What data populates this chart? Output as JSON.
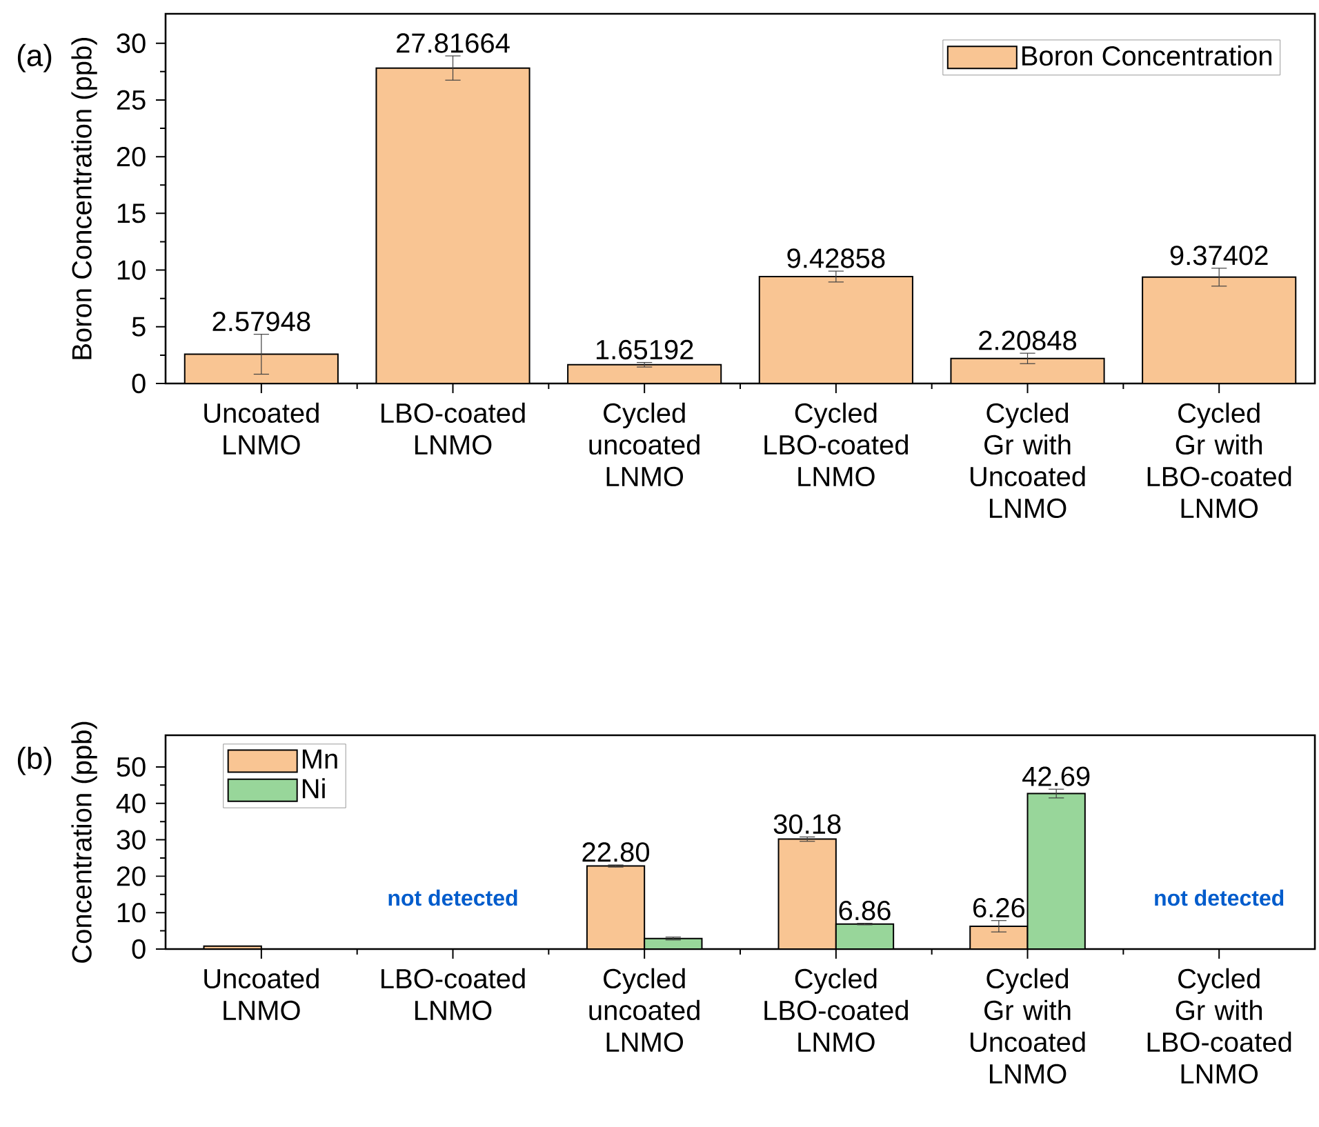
{
  "chart_data": [
    {
      "type": "bar",
      "ylabel": "Boron Concentration (ppb)",
      "categories": [
        "Uncoated LNMO",
        "LBO-coated LNMO",
        "Cycled uncoated LNMO",
        "Cycled LBO-coated LNMO",
        "Cycled Gr with Uncoated LNMO",
        "Cycled Gr with LBO-coated LNMO"
      ],
      "series": [
        {
          "name": "Boron Concentration",
          "color": "#f9c593",
          "values": [
            2.57948,
            27.81664,
            1.65192,
            9.42858,
            2.20848,
            9.37402
          ],
          "errors": [
            1.76,
            1.07,
            0.2,
            0.48,
            0.46,
            0.79
          ],
          "value_labels": [
            "2.57948",
            "27.81664",
            "1.65192",
            "9.42858",
            "2.20848",
            "9.37402"
          ]
        }
      ],
      "ylim": [
        0,
        32.6
      ],
      "yticks": [
        0,
        5,
        10,
        15,
        20,
        25,
        30
      ],
      "legend": "top right",
      "annotations": [
        "(a)"
      ]
    },
    {
      "type": "bar",
      "ylabel": "Concentration (ppb)",
      "categories": [
        "Uncoated LNMO",
        "LBO-coated LNMO",
        "Cycled uncoated LNMO",
        "Cycled LBO-coated LNMO",
        "Cycled Gr with Uncoated LNMO",
        "Cycled Gr with LBO-coated LNMO"
      ],
      "series": [
        {
          "name": "Mn",
          "color": "#f9c593",
          "values": [
            0.8,
            null,
            22.8,
            30.18,
            6.26,
            null
          ],
          "errors": [
            null,
            null,
            0.3,
            0.6,
            1.56,
            null
          ],
          "value_labels": [
            null,
            null,
            "22.80",
            "30.18",
            "6.26",
            null
          ]
        },
        {
          "name": "Ni",
          "color": "#98d69a",
          "values": [
            null,
            null,
            2.9,
            6.86,
            42.69,
            null
          ],
          "errors": [
            null,
            null,
            0.4,
            0.2,
            1.2,
            null
          ],
          "value_labels": [
            null,
            null,
            null,
            "6.86",
            "42.69",
            null
          ]
        }
      ],
      "ylim": [
        0,
        58.7
      ],
      "yticks": [
        0,
        10,
        20,
        30,
        40,
        50
      ],
      "legend": "top left",
      "annotations": [
        "(b)",
        "not detected",
        "not detected"
      ]
    }
  ]
}
